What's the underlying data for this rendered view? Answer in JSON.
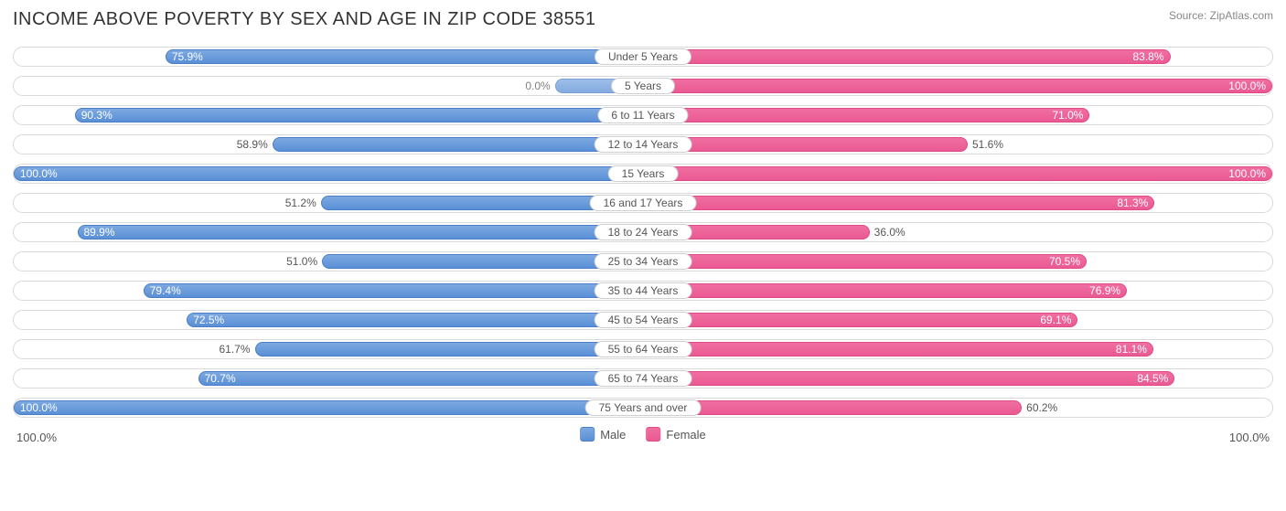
{
  "title": "INCOME ABOVE POVERTY BY SEX AND AGE IN ZIP CODE 38551",
  "source": "Source: ZipAtlas.com",
  "axis": {
    "left": "100.0%",
    "right": "100.0%"
  },
  "legend": {
    "male": "Male",
    "female": "Female"
  },
  "colors": {
    "male_fill_top": "#7ca9e0",
    "male_fill_bot": "#5a8fd6",
    "male_border": "#4a7ec7",
    "female_fill_top": "#f06ea0",
    "female_fill_bot": "#ea5a93",
    "female_border": "#e04886",
    "track_border": "#d9d9d9",
    "text": "#555555",
    "bg": "#ffffff"
  },
  "chart": {
    "type": "population-pyramid",
    "max": 100.0,
    "label_inside_threshold": 65.0,
    "rows": [
      {
        "category": "Under 5 Years",
        "male": 75.9,
        "female": 83.8
      },
      {
        "category": "5 Years",
        "male": 0.0,
        "female": 100.0
      },
      {
        "category": "6 to 11 Years",
        "male": 90.3,
        "female": 71.0
      },
      {
        "category": "12 to 14 Years",
        "male": 58.9,
        "female": 51.6
      },
      {
        "category": "15 Years",
        "male": 100.0,
        "female": 100.0
      },
      {
        "category": "16 and 17 Years",
        "male": 51.2,
        "female": 81.3
      },
      {
        "category": "18 to 24 Years",
        "male": 89.9,
        "female": 36.0
      },
      {
        "category": "25 to 34 Years",
        "male": 51.0,
        "female": 70.5
      },
      {
        "category": "35 to 44 Years",
        "male": 79.4,
        "female": 76.9
      },
      {
        "category": "45 to 54 Years",
        "male": 72.5,
        "female": 69.1
      },
      {
        "category": "55 to 64 Years",
        "male": 61.7,
        "female": 81.1
      },
      {
        "category": "65 to 74 Years",
        "male": 70.7,
        "female": 84.5
      },
      {
        "category": "75 Years and over",
        "male": 100.0,
        "female": 60.2
      }
    ]
  }
}
